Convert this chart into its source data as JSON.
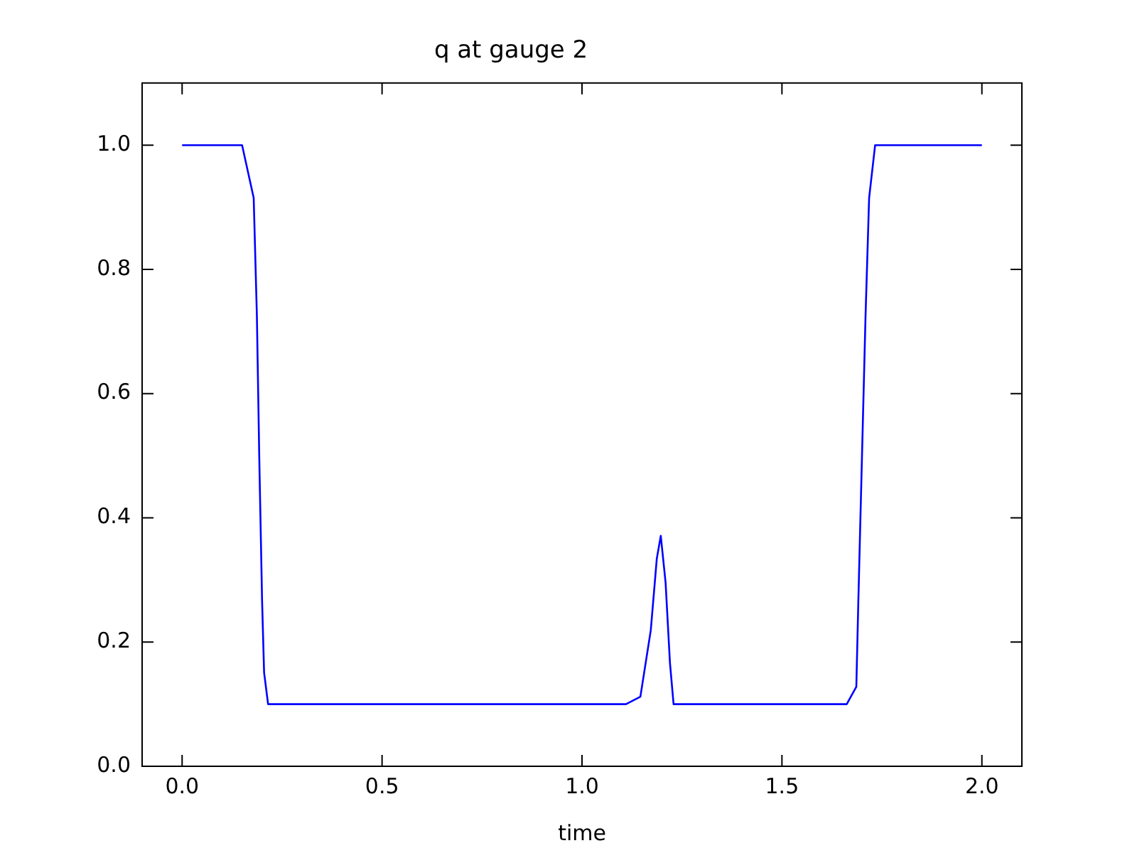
{
  "chart_data": {
    "type": "line",
    "title": "q at gauge 2",
    "xlabel": "time",
    "marker": "none",
    "x": [
      0,
      0.15,
      0.179,
      0.187,
      0.193,
      0.2,
      0.205,
      0.215,
      0.5,
      1.0,
      1.11,
      1.146,
      1.172,
      1.187,
      1.197,
      1.209,
      1.22,
      1.229,
      1.5,
      1.662,
      1.686,
      1.691,
      1.7,
      1.709,
      1.718,
      1.733,
      2.0
    ],
    "series": [
      {
        "color": "#0000ff",
        "values": [
          1.0,
          1.0,
          0.915,
          0.725,
          0.495,
          0.266,
          0.151,
          0.1,
          0.1,
          0.1,
          0.1,
          0.112,
          0.219,
          0.334,
          0.371,
          0.296,
          0.166,
          0.1,
          0.1,
          0.1,
          0.128,
          0.265,
          0.495,
          0.724,
          0.915,
          1.0,
          1.0
        ]
      }
    ],
    "xlim": [
      -0.1,
      2.1
    ],
    "ylim": [
      0,
      1.1
    ],
    "xticks": [
      {
        "value": 0,
        "label": "0.0"
      },
      0.5,
      {
        "value": 1,
        "label": "1.0"
      },
      1.5,
      {
        "value": 2,
        "label": "2.0"
      }
    ],
    "yticks": [
      {
        "value": 0,
        "label": "0.0"
      },
      0.2,
      0.4,
      0.6,
      0.8,
      {
        "value": 1,
        "label": "1.0"
      }
    ]
  }
}
